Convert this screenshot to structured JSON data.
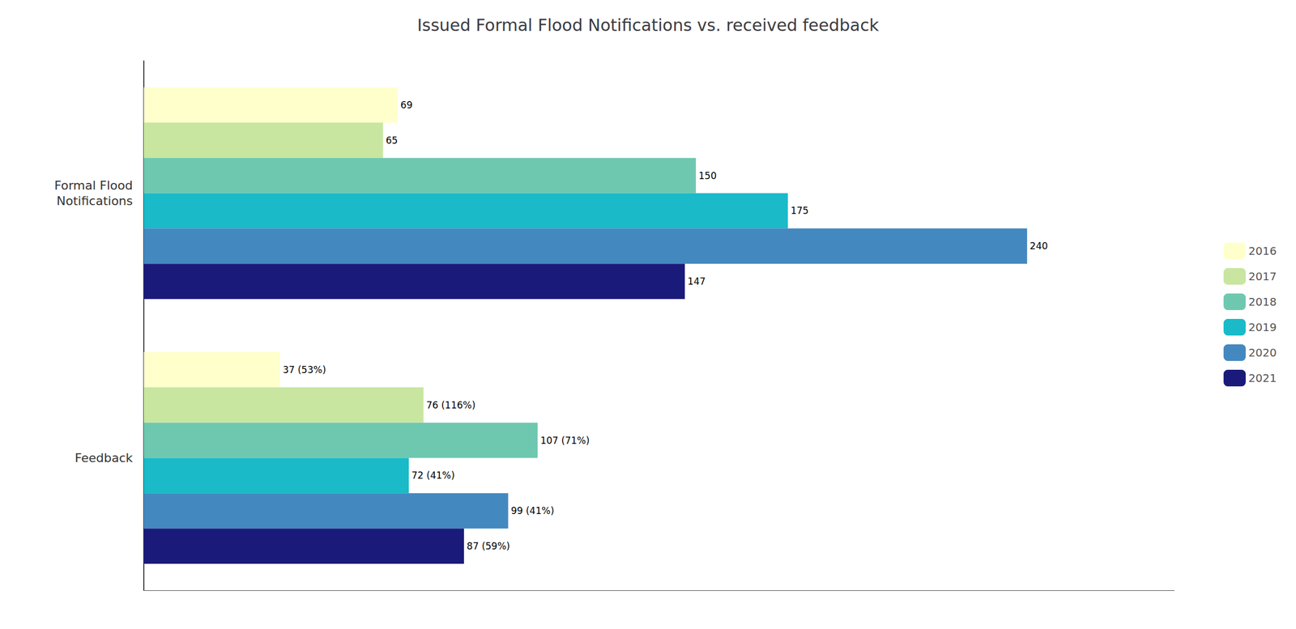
{
  "chart_data": {
    "type": "bar",
    "orientation": "horizontal",
    "title": "Issued Formal Flood Notifications vs. received feedback",
    "categories": [
      "Formal Flood\nNotifications",
      "Feedback"
    ],
    "series": [
      {
        "name": "2016",
        "color": "#FFFFCC",
        "values": [
          69,
          37
        ],
        "value_labels": [
          "69",
          "37 (53%)"
        ]
      },
      {
        "name": "2017",
        "color": "#C8E6A0",
        "values": [
          65,
          76
        ],
        "value_labels": [
          "65",
          "76 (116%)"
        ]
      },
      {
        "name": "2018",
        "color": "#6EC8B0",
        "values": [
          150,
          107
        ],
        "value_labels": [
          "150",
          "107 (71%)"
        ]
      },
      {
        "name": "2019",
        "color": "#1ABAC8",
        "values": [
          175,
          72
        ],
        "value_labels": [
          "175",
          "72 (41%)"
        ]
      },
      {
        "name": "2020",
        "color": "#4488C0",
        "values": [
          240,
          99
        ],
        "value_labels": [
          "240",
          "99 (41%)"
        ]
      },
      {
        "name": "2021",
        "color": "#1A1A7A",
        "values": [
          147,
          87
        ],
        "value_labels": [
          "147",
          "87 (59%)"
        ]
      }
    ],
    "xlim": [
      0,
      280
    ],
    "data_labels": true,
    "tick_labels": "y",
    "grid": false,
    "legend": "right"
  }
}
